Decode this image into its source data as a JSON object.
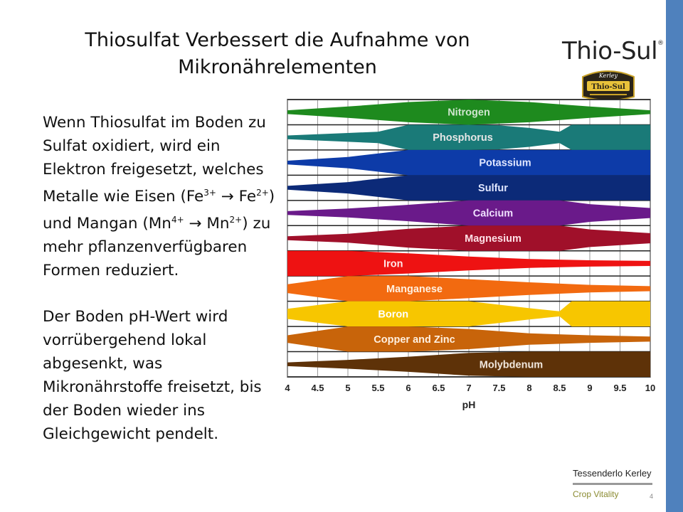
{
  "title": {
    "line1": "Thiosulfat Verbessert die Aufnahme von",
    "line2": "Mikronährelementen"
  },
  "logo": {
    "text": "Thio-Sul",
    "mark": "®",
    "badge_top": "Kerley",
    "badge_main": "Thio-Sul"
  },
  "body": {
    "p1_a": "Wenn Thiosulfat im Boden zu Sulfat oxidiert, wird ein Elektron freigesetzt, welches Metalle wie Eisen (Fe",
    "p1_sup1": "3+",
    "p1_b": " → Fe",
    "p1_sup2": "2+",
    "p1_c": ") und Mangan (Mn",
    "p1_sup3": "4+",
    "p1_d": " → Mn",
    "p1_sup4": "2+",
    "p1_e": ") zu mehr pflanzenverfügbaren Formen reduziert.",
    "p2": "Der Boden pH-Wert wird vorrübergehend lokal abgesenkt, was Mikronährstoffe freisetzt, bis der Boden wieder ins Gleichgewicht pendelt."
  },
  "footer": {
    "company": "Tessenderlo Kerley",
    "tagline": "Crop Vitality",
    "page": "4"
  },
  "colors": {
    "sidebar": "#4f81bd",
    "footer_tagline": "#8a8a30"
  },
  "chart_data": {
    "type": "area",
    "xlabel": "pH",
    "xlim": [
      4,
      10
    ],
    "ticks": [
      "4",
      "4.5",
      "5",
      "5.5",
      "6",
      "6.5",
      "7",
      "7.5",
      "8",
      "8.5",
      "9",
      "9.5",
      "10"
    ],
    "grid": true,
    "series": [
      {
        "name": "Nitrogen",
        "color": "#1e8a1e",
        "label_color": "#cfe6cf",
        "label_ph": 7.0,
        "points": [
          [
            4,
            0.15
          ],
          [
            5,
            0.45
          ],
          [
            6,
            0.8
          ],
          [
            7,
            1.0
          ],
          [
            8,
            0.8
          ],
          [
            9,
            0.45
          ],
          [
            10,
            0.15
          ]
        ]
      },
      {
        "name": "Phosphorus",
        "color": "#1a7a78",
        "label_color": "#e6e6e6",
        "label_ph": 6.9,
        "points": [
          [
            4,
            0.15
          ],
          [
            5,
            0.35
          ],
          [
            5.5,
            0.45
          ],
          [
            6,
            1.0
          ],
          [
            7,
            1.0
          ],
          [
            7.5,
            0.95
          ],
          [
            8,
            0.75
          ],
          [
            8.5,
            0.45
          ],
          [
            8.7,
            1.0
          ],
          [
            9,
            1.0
          ],
          [
            10,
            1.0
          ]
        ]
      },
      {
        "name": "Potassium",
        "color": "#0d3ba8",
        "label_color": "#e0e6ff",
        "label_ph": 7.6,
        "points": [
          [
            4,
            0.15
          ],
          [
            5,
            0.45
          ],
          [
            6,
            1.0
          ],
          [
            7,
            1.0
          ],
          [
            8,
            1.0
          ],
          [
            9,
            1.0
          ],
          [
            10,
            1.0
          ]
        ]
      },
      {
        "name": "Sulfur",
        "color": "#0c2a78",
        "label_color": "#e0e6ff",
        "label_ph": 7.4,
        "points": [
          [
            4,
            0.15
          ],
          [
            5,
            0.45
          ],
          [
            6,
            1.0
          ],
          [
            7,
            1.0
          ],
          [
            8,
            1.0
          ],
          [
            9,
            1.0
          ],
          [
            10,
            1.0
          ]
        ]
      },
      {
        "name": "Calcium",
        "color": "#6a1a8a",
        "label_color": "#f0e0ff",
        "label_ph": 7.4,
        "points": [
          [
            4,
            0.15
          ],
          [
            5,
            0.35
          ],
          [
            6,
            0.65
          ],
          [
            7,
            1.0
          ],
          [
            8,
            1.0
          ],
          [
            8.5,
            1.0
          ],
          [
            9,
            0.7
          ],
          [
            10,
            0.4
          ]
        ]
      },
      {
        "name": "Magnesium",
        "color": "#a0102a",
        "label_color": "#ffe0e6",
        "label_ph": 7.4,
        "points": [
          [
            4,
            0.15
          ],
          [
            5,
            0.35
          ],
          [
            6,
            0.75
          ],
          [
            7,
            1.0
          ],
          [
            8,
            1.0
          ],
          [
            8.5,
            1.0
          ],
          [
            9,
            0.7
          ],
          [
            10,
            0.4
          ]
        ]
      },
      {
        "name": "Iron",
        "color": "#ee1212",
        "label_color": "#ffe8e8",
        "label_ph": 5.75,
        "points": [
          [
            4,
            1.0
          ],
          [
            5,
            1.0
          ],
          [
            6,
            0.8
          ],
          [
            7,
            0.55
          ],
          [
            8,
            0.35
          ],
          [
            9,
            0.25
          ],
          [
            10,
            0.2
          ]
        ]
      },
      {
        "name": "Manganese",
        "color": "#f26a10",
        "label_color": "#fff0e0",
        "label_ph": 6.1,
        "points": [
          [
            4,
            0.35
          ],
          [
            5,
            1.0
          ],
          [
            6,
            1.0
          ],
          [
            7,
            0.75
          ],
          [
            8,
            0.5
          ],
          [
            9,
            0.3
          ],
          [
            10,
            0.2
          ]
        ]
      },
      {
        "name": "Boron",
        "color": "#f7c600",
        "label_color": "#ffffff",
        "label_ph": 5.75,
        "points": [
          [
            4,
            0.4
          ],
          [
            5,
            1.0
          ],
          [
            6,
            1.0
          ],
          [
            7,
            1.0
          ],
          [
            8,
            0.45
          ],
          [
            8.5,
            0.2
          ],
          [
            8.7,
            1.0
          ],
          [
            9,
            1.0
          ],
          [
            10,
            1.0
          ]
        ]
      },
      {
        "name": "Copper and Zinc",
        "color": "#c8640a",
        "label_color": "#fff0e0",
        "label_ph": 6.1,
        "points": [
          [
            4,
            0.3
          ],
          [
            5,
            1.0
          ],
          [
            6,
            1.0
          ],
          [
            7,
            0.8
          ],
          [
            8,
            0.45
          ],
          [
            9,
            0.3
          ],
          [
            10,
            0.2
          ]
        ]
      },
      {
        "name": "Molybdenum",
        "color": "#5e3208",
        "label_color": "#f0e6dc",
        "label_ph": 7.7,
        "points": [
          [
            4,
            0.15
          ],
          [
            5,
            0.35
          ],
          [
            6,
            0.6
          ],
          [
            7,
            0.9
          ],
          [
            8,
            1.0
          ],
          [
            9,
            1.0
          ],
          [
            10,
            1.0
          ]
        ]
      }
    ]
  }
}
